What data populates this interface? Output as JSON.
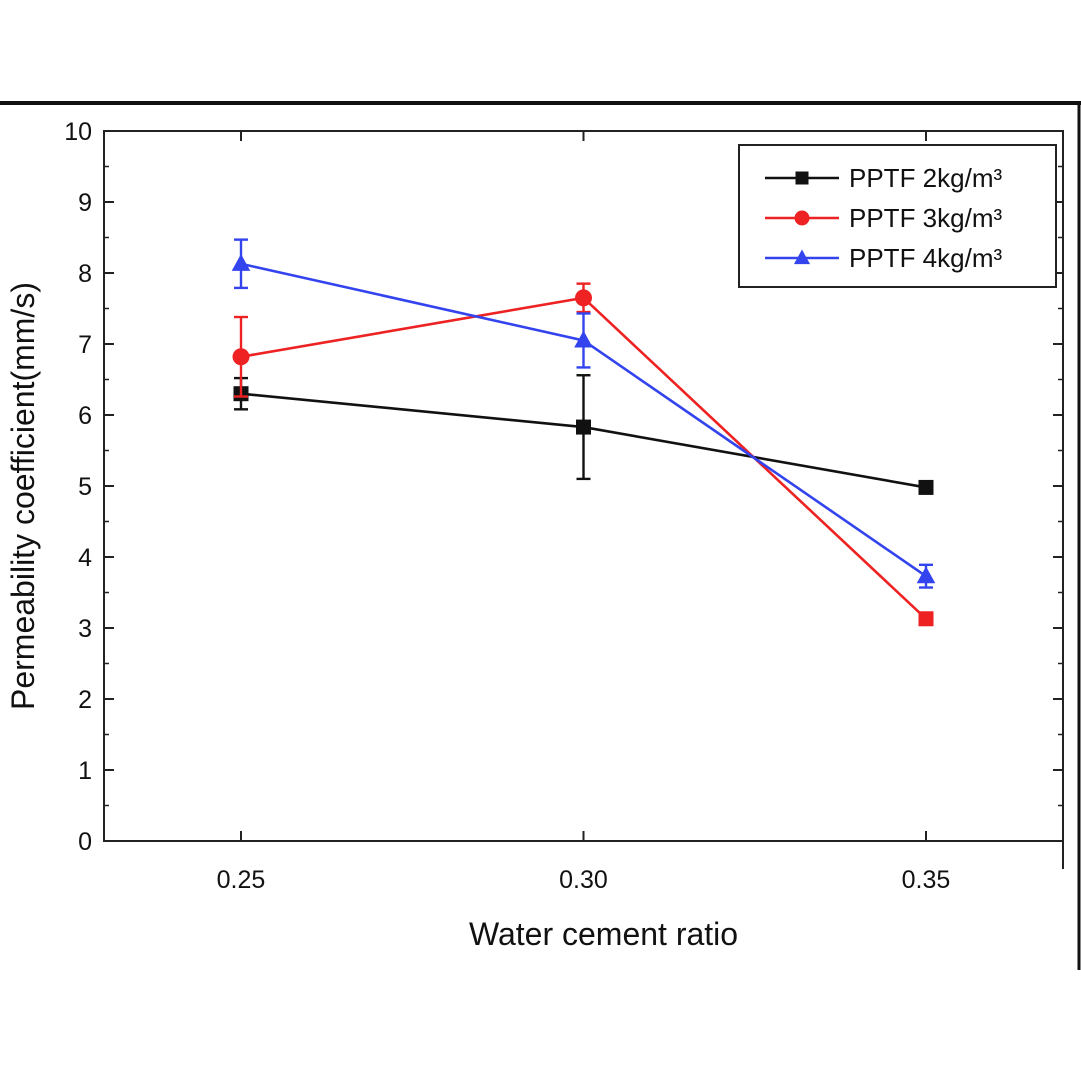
{
  "chart_data": {
    "type": "line",
    "title": "",
    "xlabel": "Water cement ratio",
    "ylabel": "Permeability coefficient(mm/s)",
    "x": [
      0.25,
      0.3,
      0.35
    ],
    "x_tick_labels": [
      "0.25",
      "0.30",
      "0.35"
    ],
    "xlim": [
      0.23,
      0.37
    ],
    "ylim": [
      0,
      10
    ],
    "y_ticks": [
      0,
      1,
      2,
      3,
      4,
      5,
      6,
      7,
      8,
      9,
      10
    ],
    "grid": false,
    "legend_position": "top-right",
    "series": [
      {
        "name": "PPTF 2kg/m³",
        "color": "#111111",
        "marker": "square",
        "values": [
          6.3,
          5.83,
          4.98
        ],
        "errors": [
          0.22,
          0.73,
          0.0
        ]
      },
      {
        "name": "PPTF 3kg/m³",
        "color": "#ee2222",
        "marker": "circle",
        "values": [
          6.82,
          7.65,
          3.13
        ],
        "errors": [
          0.56,
          0.2,
          0.0
        ]
      },
      {
        "name": "PPTF 4kg/m³",
        "color": "#3344ee",
        "marker": "triangle",
        "values": [
          8.13,
          7.05,
          3.73
        ],
        "errors": [
          0.34,
          0.38,
          0.16
        ]
      }
    ]
  }
}
